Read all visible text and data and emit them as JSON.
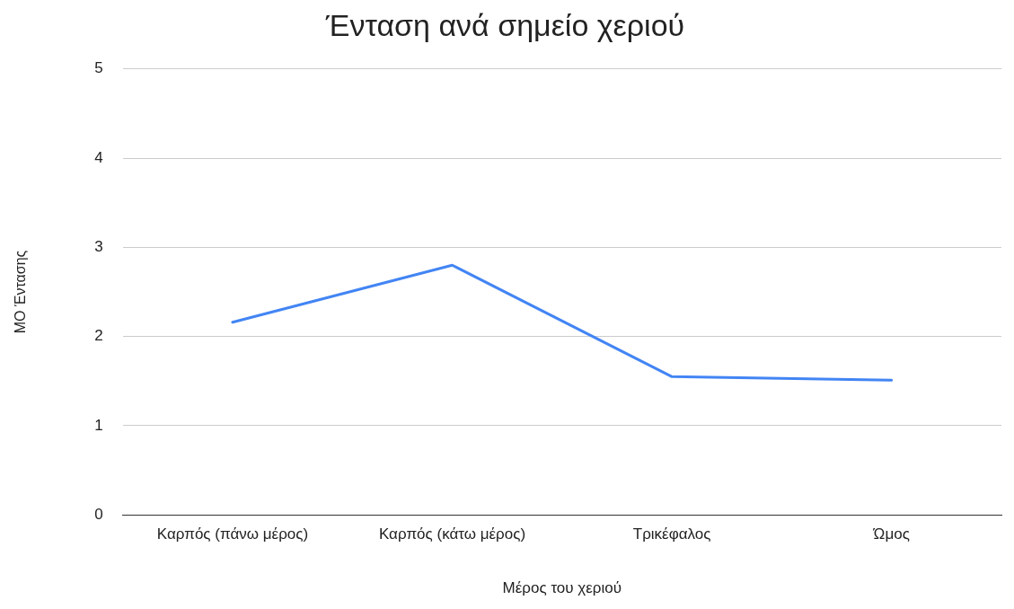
{
  "chart_data": {
    "type": "line",
    "title": "Ένταση ανά σημείο χεριού",
    "xlabel": "Μέρος του χεριού",
    "ylabel": "ΜΟ Έντασης",
    "categories": [
      "Καρπός (πάνω μέρος)",
      "Καρπός (κάτω μέρος)",
      "Τρικέφαλος",
      "Ώμος"
    ],
    "series": [
      {
        "color": "#4285f4",
        "values": [
          2.16,
          2.8,
          1.55,
          1.51
        ]
      }
    ],
    "ylim": [
      0,
      5
    ],
    "yticks": [
      0,
      1,
      2,
      3,
      4,
      5
    ],
    "grid": "y",
    "legend": false,
    "marker": "none",
    "line_style": "solid"
  }
}
